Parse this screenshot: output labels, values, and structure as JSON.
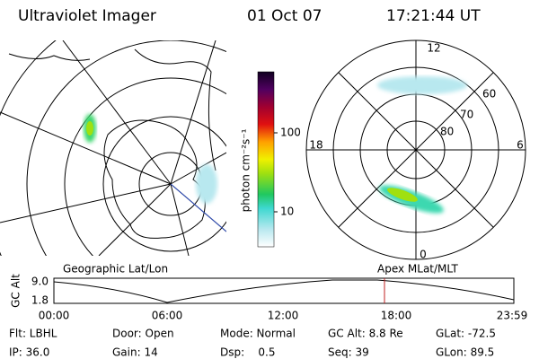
{
  "header": {
    "title": "Ultraviolet Imager",
    "date": "01 Oct 07",
    "time": "17:21:44 UT"
  },
  "colorbar": {
    "label": "photon cm⁻²s⁻¹",
    "ticks": [
      "100",
      "10"
    ]
  },
  "polar": {
    "lat_labels": [
      "80",
      "70",
      "60"
    ],
    "mlt_labels": [
      "12",
      "18",
      "6",
      "0"
    ]
  },
  "timeline": {
    "left_label": "Geographic Lat/Lon",
    "right_label": "Apex MLat/MLT",
    "axis_label": "GC Alt",
    "y_labels": [
      "9.0",
      "1.8"
    ],
    "x_labels": [
      "00:00",
      "06:00",
      "12:00",
      "18:00",
      "23:59"
    ]
  },
  "info": {
    "rows": [
      [
        "Flt: LBHL",
        "Door: Open",
        "Mode: Normal",
        "GC Alt: 8.8 Re",
        "GLat: -72.5"
      ],
      [
        "IP: 36.0",
        "Gain: 14",
        "Dsp:    0.5",
        "Seq: 39",
        "GLon: 89.5"
      ]
    ]
  }
}
